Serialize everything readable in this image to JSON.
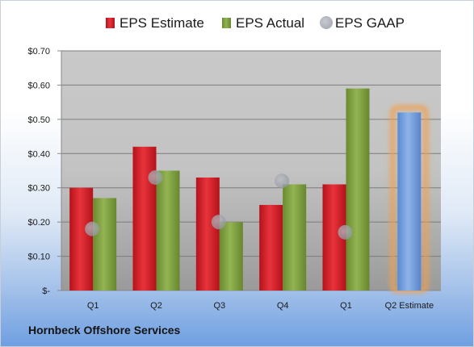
{
  "chart_data": {
    "type": "bar",
    "categories": [
      "Q1",
      "Q2",
      "Q3",
      "Q4",
      "Q1",
      "Q2 Estimate"
    ],
    "series": [
      {
        "name": "EPS Estimate",
        "color": "#d0202a",
        "values": [
          0.3,
          0.42,
          0.33,
          0.25,
          0.31,
          null
        ]
      },
      {
        "name": "EPS Actual",
        "color": "#7a9c3c",
        "values": [
          0.27,
          0.35,
          0.2,
          0.31,
          0.59,
          0.52
        ]
      },
      {
        "name": "EPS GAAP",
        "color": "#b9bdc4",
        "marker": "circle",
        "values": [
          0.18,
          0.33,
          0.2,
          0.32,
          0.17,
          null
        ]
      }
    ],
    "estimate_bar": {
      "category": "Q2 Estimate",
      "value": 0.52,
      "color": "#6f9fd8",
      "glow": "#f0a050"
    },
    "yticks": [
      {
        "value": 0.0,
        "label": "$-"
      },
      {
        "value": 0.1,
        "label": "$0.10"
      },
      {
        "value": 0.2,
        "label": "$0.20"
      },
      {
        "value": 0.3,
        "label": "$0.30"
      },
      {
        "value": 0.4,
        "label": "$0.40"
      },
      {
        "value": 0.5,
        "label": "$0.50"
      },
      {
        "value": 0.6,
        "label": "$0.60"
      },
      {
        "value": 0.7,
        "label": "$0.70"
      }
    ],
    "ylim": [
      0,
      0.7
    ],
    "legend_position": "top",
    "grid": true,
    "footer": "Hornbeck Offshore Services"
  }
}
